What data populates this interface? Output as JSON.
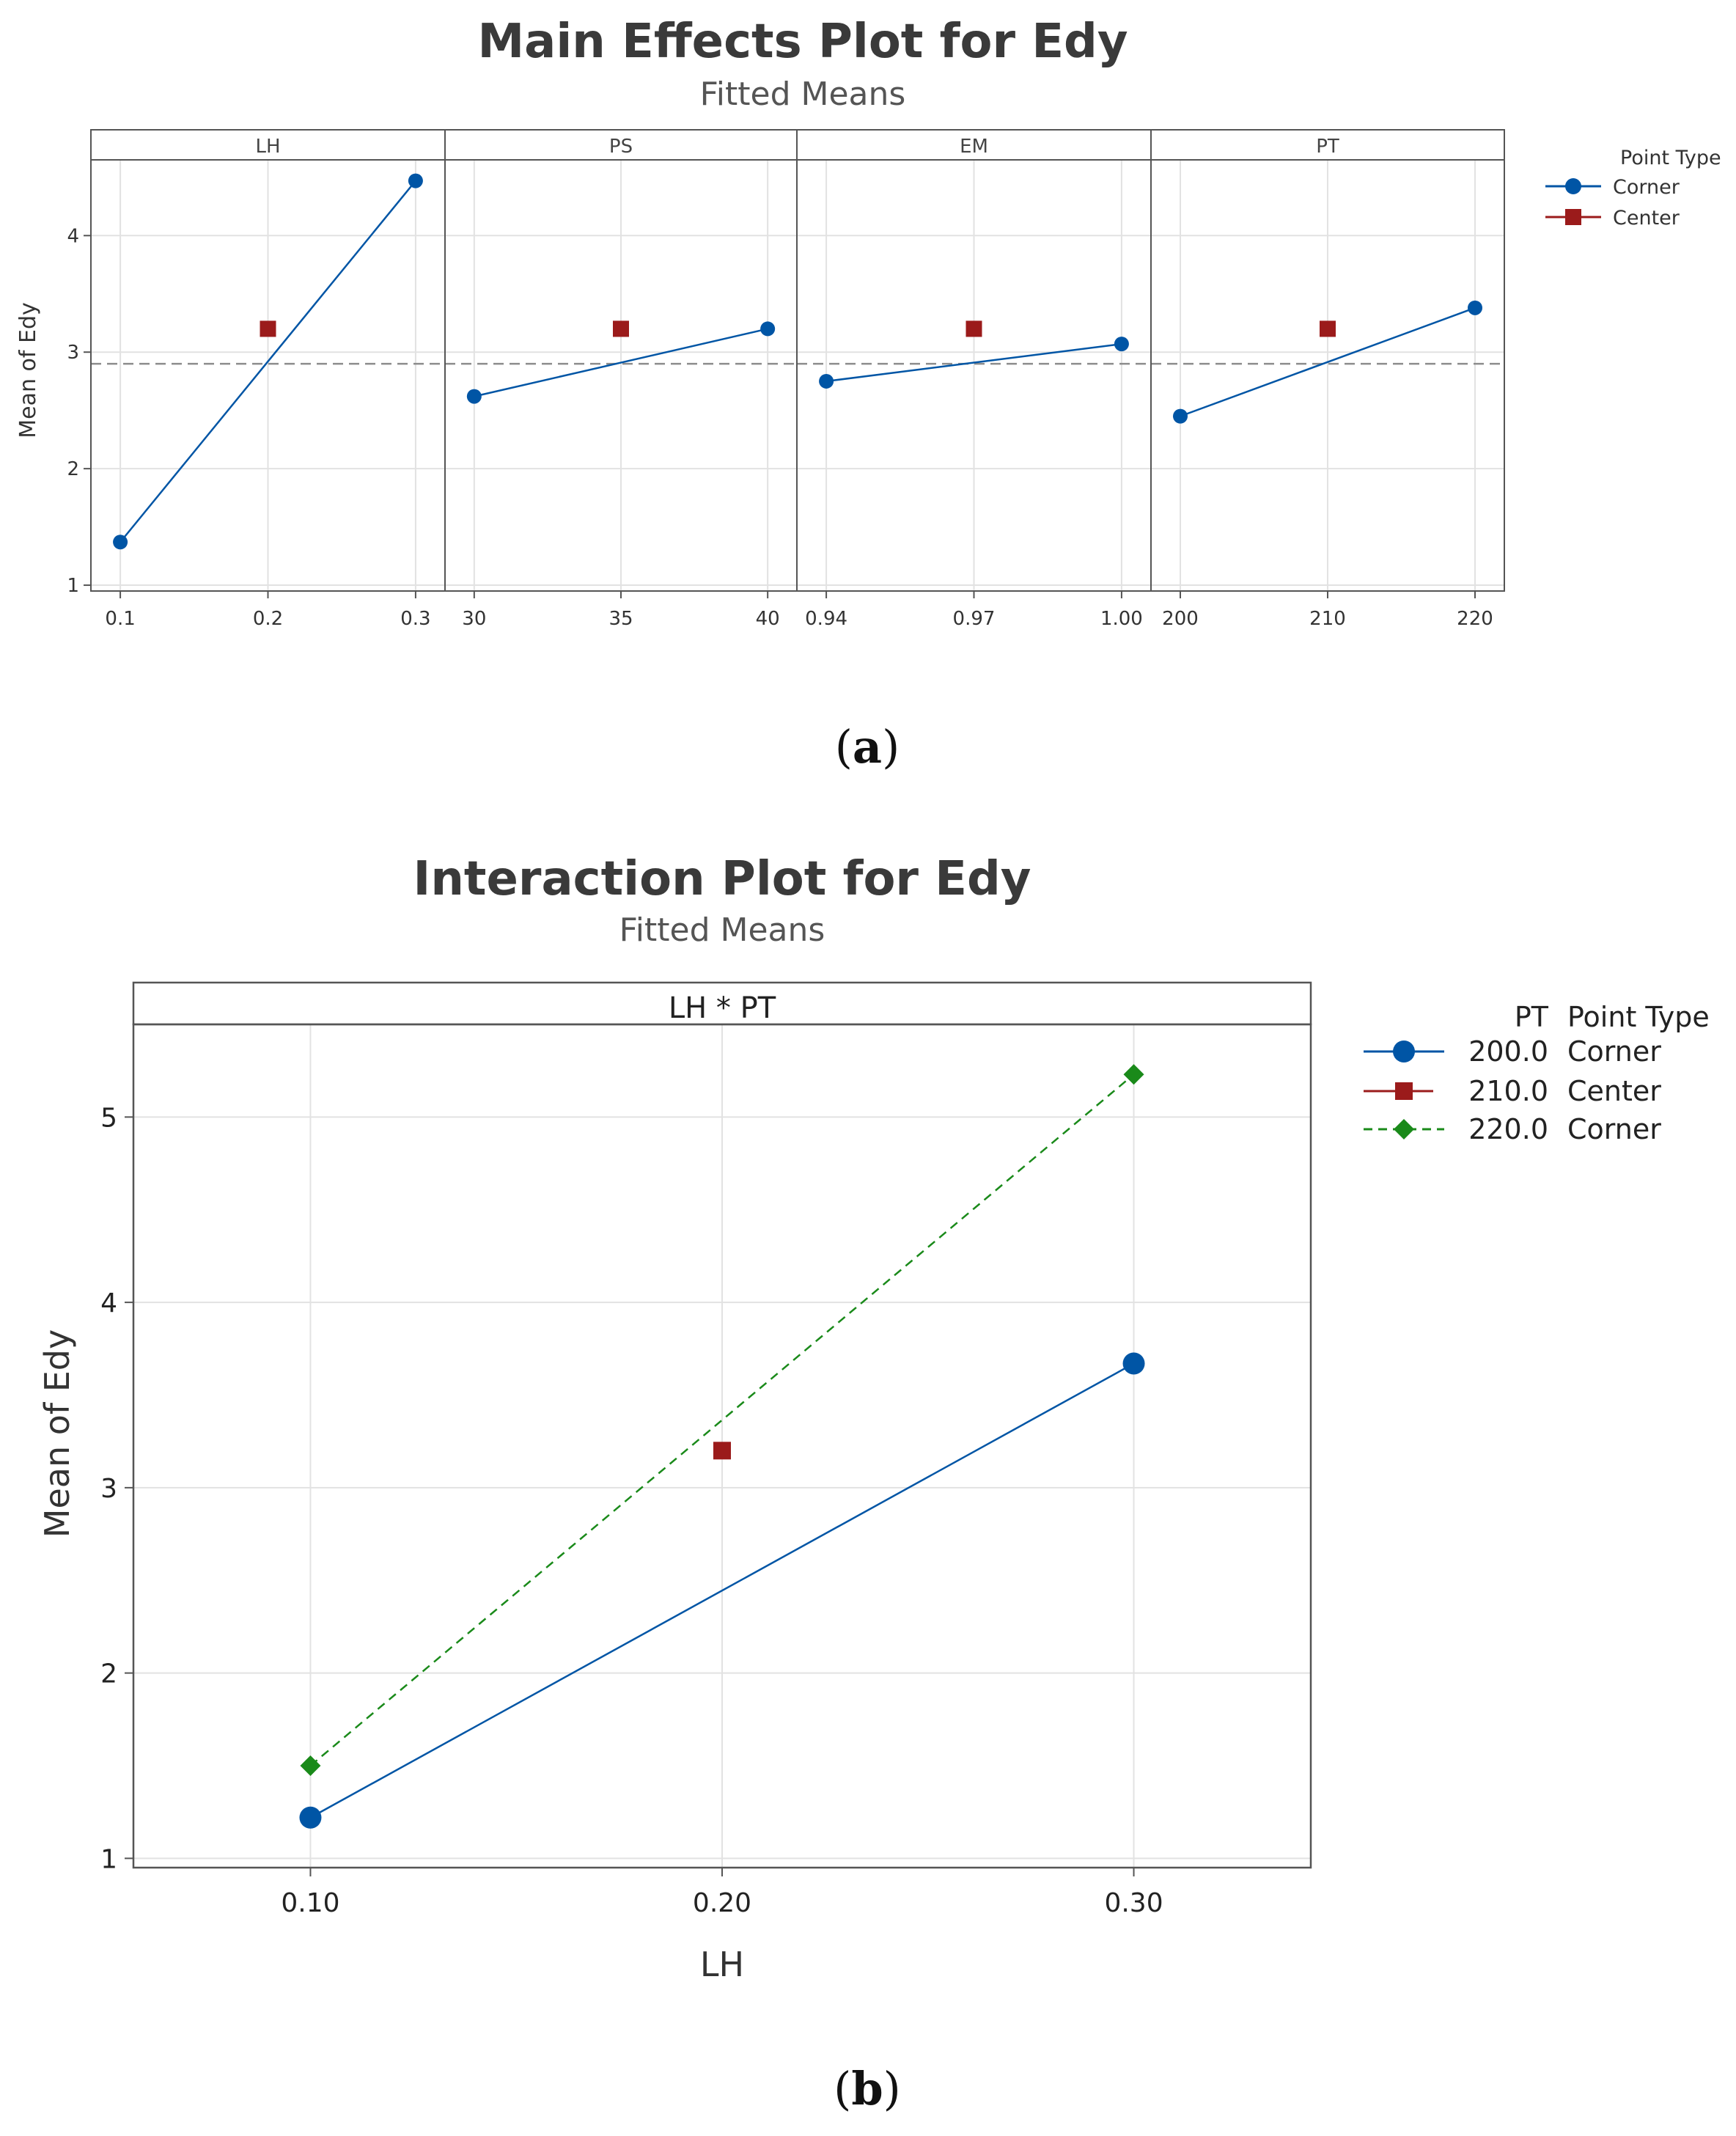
{
  "colors": {
    "corner": "#0055A5",
    "center": "#9B1B1B",
    "pt220": "#1A8A1A",
    "grid": "#e2e2e2",
    "frame": "#555555",
    "mean_line": "#8c8c8c"
  },
  "chart_data": [
    {
      "type": "line",
      "title": "Main Effects Plot for Edy",
      "subtitle": "Fitted Means",
      "ylabel": "Mean of Edy",
      "ylim": [
        0.95,
        4.65
      ],
      "yticks": [
        1,
        2,
        3,
        4
      ],
      "overall_mean": 2.9,
      "caption": "a",
      "legend": {
        "title": "Point Type",
        "entries": [
          {
            "label": "Corner",
            "color": "#0055A5",
            "marker": "circle"
          },
          {
            "label": "Center",
            "color": "#9B1B1B",
            "marker": "square"
          }
        ]
      },
      "panels": [
        {
          "name": "LH",
          "tick_labels": [
            "0.1",
            "0.2",
            "0.3"
          ],
          "corner": [
            1.37,
            4.47
          ],
          "center": 3.2
        },
        {
          "name": "PS",
          "tick_labels": [
            "30",
            "35",
            "40"
          ],
          "corner": [
            2.62,
            3.2
          ],
          "center": 3.2
        },
        {
          "name": "EM",
          "tick_labels": [
            "0.94",
            "0.97",
            "1.00"
          ],
          "corner": [
            2.75,
            3.07
          ],
          "center": 3.2
        },
        {
          "name": "PT",
          "tick_labels": [
            "200",
            "210",
            "220"
          ],
          "corner": [
            2.45,
            3.38
          ],
          "center": 3.2
        }
      ]
    },
    {
      "type": "line",
      "title": "Interaction Plot for Edy",
      "subtitle": "Fitted Means",
      "panel_label": "LH * PT",
      "xlabel": "LH",
      "ylabel": "Mean of Edy",
      "x": [
        0.1,
        0.2,
        0.3
      ],
      "x_tick_labels": [
        "0.10",
        "0.20",
        "0.30"
      ],
      "xlim": [
        0.057,
        0.343
      ],
      "ylim": [
        0.95,
        5.5
      ],
      "yticks": [
        1,
        2,
        3,
        4,
        5
      ],
      "caption": "b",
      "legend": {
        "header_pt": "PT",
        "header_type": "Point Type",
        "entries": [
          {
            "pt": "200.0",
            "type": "Corner",
            "color": "#0055A5",
            "marker": "circle",
            "dash": false
          },
          {
            "pt": "210.0",
            "type": "Center",
            "color": "#9B1B1B",
            "marker": "square",
            "dash": false
          },
          {
            "pt": "220.0",
            "type": "Corner",
            "color": "#1A8A1A",
            "marker": "diamond",
            "dash": true
          }
        ]
      },
      "series": [
        {
          "name": "200.0 Corner",
          "x": [
            0.1,
            0.3
          ],
          "values": [
            1.22,
            3.67
          ],
          "color": "#0055A5",
          "marker": "circle",
          "dash": false
        },
        {
          "name": "210.0 Center",
          "x": [
            0.2
          ],
          "values": [
            3.2
          ],
          "color": "#9B1B1B",
          "marker": "square",
          "dash": false
        },
        {
          "name": "220.0 Corner",
          "x": [
            0.1,
            0.3
          ],
          "values": [
            1.5,
            5.23
          ],
          "color": "#1A8A1A",
          "marker": "diamond",
          "dash": true
        }
      ]
    }
  ]
}
